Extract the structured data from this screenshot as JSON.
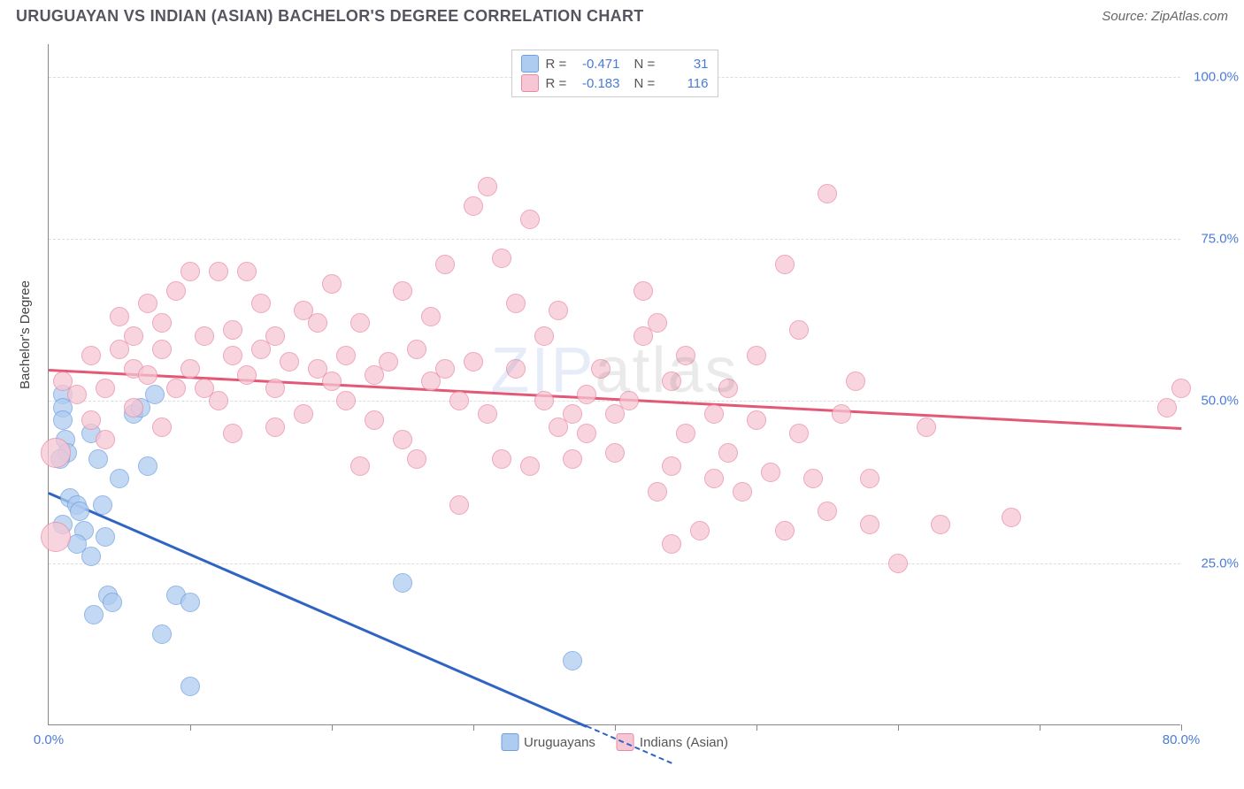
{
  "header": {
    "title": "URUGUAYAN VS INDIAN (ASIAN) BACHELOR'S DEGREE CORRELATION CHART",
    "source_prefix": "Source: ",
    "source_name": "ZipAtlas.com"
  },
  "chart": {
    "type": "scatter",
    "ylabel": "Bachelor's Degree",
    "xlim": [
      0,
      80
    ],
    "ylim": [
      0,
      105
    ],
    "xtick_labels": [
      {
        "x": 0,
        "label": "0.0%"
      },
      {
        "x": 80,
        "label": "80.0%"
      }
    ],
    "xtick_marks": [
      10,
      20,
      30,
      40,
      50,
      60,
      70,
      80
    ],
    "ytick_labels": [
      {
        "y": 25,
        "label": "25.0%"
      },
      {
        "y": 50,
        "label": "50.0%"
      },
      {
        "y": 75,
        "label": "75.0%"
      },
      {
        "y": 100,
        "label": "100.0%"
      }
    ],
    "marker_radius": 11,
    "marker_radius_large": 17,
    "marker_border_width": 1.3,
    "background_color": "#ffffff",
    "grid_color": "#dddddd",
    "axis_color": "#888888",
    "series": [
      {
        "name": "Uruguayans",
        "fill_color": "#aecbf0",
        "border_color": "#6f9fe0",
        "trend": {
          "x1": 0,
          "y1": 36,
          "x2": 38,
          "y2": 0,
          "color": "#2f63c4",
          "dash_x_end": 44
        },
        "R": "-0.471",
        "N": "31",
        "points": [
          {
            "x": 1,
            "y": 51
          },
          {
            "x": 1,
            "y": 49
          },
          {
            "x": 1.2,
            "y": 44
          },
          {
            "x": 1.3,
            "y": 42
          },
          {
            "x": 1,
            "y": 47
          },
          {
            "x": 0.8,
            "y": 41
          },
          {
            "x": 1.5,
            "y": 35
          },
          {
            "x": 2,
            "y": 34
          },
          {
            "x": 2.2,
            "y": 33
          },
          {
            "x": 1,
            "y": 31
          },
          {
            "x": 2.5,
            "y": 30
          },
          {
            "x": 3.5,
            "y": 41
          },
          {
            "x": 3,
            "y": 45
          },
          {
            "x": 4,
            "y": 29
          },
          {
            "x": 3,
            "y": 26
          },
          {
            "x": 4.2,
            "y": 20
          },
          {
            "x": 4.5,
            "y": 19
          },
          {
            "x": 3.2,
            "y": 17
          },
          {
            "x": 8,
            "y": 14
          },
          {
            "x": 10,
            "y": 6
          },
          {
            "x": 6,
            "y": 48
          },
          {
            "x": 6.5,
            "y": 49
          },
          {
            "x": 7,
            "y": 40
          },
          {
            "x": 9,
            "y": 20
          },
          {
            "x": 10,
            "y": 19
          },
          {
            "x": 25,
            "y": 22
          },
          {
            "x": 37,
            "y": 10
          },
          {
            "x": 7.5,
            "y": 51
          },
          {
            "x": 5,
            "y": 38
          },
          {
            "x": 2,
            "y": 28
          },
          {
            "x": 3.8,
            "y": 34
          }
        ]
      },
      {
        "name": "Indians (Asian)",
        "fill_color": "#f6c6d4",
        "border_color": "#e88aa3",
        "trend": {
          "x1": 0,
          "y1": 55,
          "x2": 80,
          "y2": 46,
          "color": "#e45877"
        },
        "R": "-0.183",
        "N": "116",
        "points": [
          {
            "x": 0.5,
            "y": 29,
            "r": 17
          },
          {
            "x": 0.5,
            "y": 42,
            "r": 17
          },
          {
            "x": 2,
            "y": 51
          },
          {
            "x": 3,
            "y": 47
          },
          {
            "x": 3,
            "y": 57
          },
          {
            "x": 4,
            "y": 52
          },
          {
            "x": 5,
            "y": 58
          },
          {
            "x": 5,
            "y": 63
          },
          {
            "x": 6,
            "y": 55
          },
          {
            "x": 6,
            "y": 60
          },
          {
            "x": 7,
            "y": 54
          },
          {
            "x": 7,
            "y": 65
          },
          {
            "x": 8,
            "y": 62
          },
          {
            "x": 8,
            "y": 58
          },
          {
            "x": 9,
            "y": 67
          },
          {
            "x": 9,
            "y": 52
          },
          {
            "x": 10,
            "y": 70
          },
          {
            "x": 10,
            "y": 55
          },
          {
            "x": 11,
            "y": 60
          },
          {
            "x": 12,
            "y": 70
          },
          {
            "x": 12,
            "y": 50
          },
          {
            "x": 13,
            "y": 57
          },
          {
            "x": 13,
            "y": 61
          },
          {
            "x": 14,
            "y": 70
          },
          {
            "x": 14,
            "y": 54
          },
          {
            "x": 15,
            "y": 65
          },
          {
            "x": 15,
            "y": 58
          },
          {
            "x": 16,
            "y": 52
          },
          {
            "x": 16,
            "y": 60
          },
          {
            "x": 17,
            "y": 56
          },
          {
            "x": 18,
            "y": 64
          },
          {
            "x": 18,
            "y": 48
          },
          {
            "x": 19,
            "y": 55
          },
          {
            "x": 20,
            "y": 68
          },
          {
            "x": 20,
            "y": 53
          },
          {
            "x": 21,
            "y": 50
          },
          {
            "x": 21,
            "y": 57
          },
          {
            "x": 22,
            "y": 62
          },
          {
            "x": 23,
            "y": 54
          },
          {
            "x": 23,
            "y": 47
          },
          {
            "x": 24,
            "y": 56
          },
          {
            "x": 25,
            "y": 67
          },
          {
            "x": 25,
            "y": 44
          },
          {
            "x": 26,
            "y": 41
          },
          {
            "x": 27,
            "y": 63
          },
          {
            "x": 27,
            "y": 53
          },
          {
            "x": 28,
            "y": 55
          },
          {
            "x": 28,
            "y": 71
          },
          {
            "x": 29,
            "y": 34
          },
          {
            "x": 29,
            "y": 50
          },
          {
            "x": 30,
            "y": 80
          },
          {
            "x": 30,
            "y": 56
          },
          {
            "x": 31,
            "y": 83
          },
          {
            "x": 31,
            "y": 48
          },
          {
            "x": 32,
            "y": 72
          },
          {
            "x": 32,
            "y": 41
          },
          {
            "x": 33,
            "y": 65
          },
          {
            "x": 33,
            "y": 55
          },
          {
            "x": 34,
            "y": 78
          },
          {
            "x": 34,
            "y": 40
          },
          {
            "x": 35,
            "y": 50
          },
          {
            "x": 35,
            "y": 60
          },
          {
            "x": 36,
            "y": 64
          },
          {
            "x": 37,
            "y": 41
          },
          {
            "x": 37,
            "y": 48
          },
          {
            "x": 38,
            "y": 45
          },
          {
            "x": 38,
            "y": 51
          },
          {
            "x": 39,
            "y": 55
          },
          {
            "x": 40,
            "y": 48
          },
          {
            "x": 40,
            "y": 42
          },
          {
            "x": 41,
            "y": 50
          },
          {
            "x": 42,
            "y": 67
          },
          {
            "x": 42,
            "y": 60
          },
          {
            "x": 43,
            "y": 62
          },
          {
            "x": 43,
            "y": 36
          },
          {
            "x": 44,
            "y": 53
          },
          {
            "x": 44,
            "y": 40
          },
          {
            "x": 45,
            "y": 45
          },
          {
            "x": 45,
            "y": 57
          },
          {
            "x": 46,
            "y": 30
          },
          {
            "x": 47,
            "y": 48
          },
          {
            "x": 47,
            "y": 38
          },
          {
            "x": 48,
            "y": 52
          },
          {
            "x": 48,
            "y": 42
          },
          {
            "x": 49,
            "y": 36
          },
          {
            "x": 50,
            "y": 47
          },
          {
            "x": 50,
            "y": 57
          },
          {
            "x": 51,
            "y": 39
          },
          {
            "x": 52,
            "y": 71
          },
          {
            "x": 52,
            "y": 30
          },
          {
            "x": 53,
            "y": 45
          },
          {
            "x": 53,
            "y": 61
          },
          {
            "x": 54,
            "y": 38
          },
          {
            "x": 55,
            "y": 33
          },
          {
            "x": 55,
            "y": 82
          },
          {
            "x": 56,
            "y": 48
          },
          {
            "x": 57,
            "y": 53
          },
          {
            "x": 58,
            "y": 38
          },
          {
            "x": 58,
            "y": 31
          },
          {
            "x": 60,
            "y": 25
          },
          {
            "x": 62,
            "y": 46
          },
          {
            "x": 63,
            "y": 31
          },
          {
            "x": 68,
            "y": 32
          },
          {
            "x": 79,
            "y": 49
          },
          {
            "x": 80,
            "y": 52
          },
          {
            "x": 4,
            "y": 44
          },
          {
            "x": 6,
            "y": 49
          },
          {
            "x": 8,
            "y": 46
          },
          {
            "x": 11,
            "y": 52
          },
          {
            "x": 13,
            "y": 45
          },
          {
            "x": 16,
            "y": 46
          },
          {
            "x": 19,
            "y": 62
          },
          {
            "x": 22,
            "y": 40
          },
          {
            "x": 26,
            "y": 58
          },
          {
            "x": 36,
            "y": 46
          },
          {
            "x": 44,
            "y": 28
          },
          {
            "x": 1,
            "y": 53
          }
        ]
      }
    ],
    "legend_bottom": [
      {
        "label": "Uruguayans",
        "swatch": "#aecbf0",
        "border": "#6f9fe0"
      },
      {
        "label": "Indians (Asian)",
        "swatch": "#f6c6d4",
        "border": "#e88aa3"
      }
    ]
  },
  "watermark": {
    "zip": "ZIP",
    "atlas": "atlas"
  }
}
